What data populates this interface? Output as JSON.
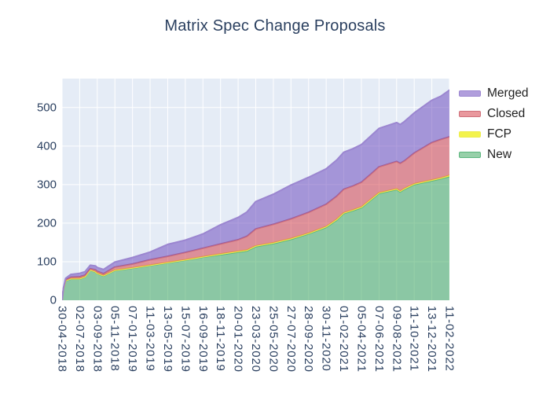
{
  "chart_data": {
    "type": "area",
    "stacked": true,
    "title": "Matrix Spec Change Proposals",
    "plot_bg_color": "#e5ecf6",
    "grid_color": "#ffffff",
    "axis_font_color": "#2a3f5f",
    "y_ticks": [
      0,
      100,
      200,
      300,
      400,
      500
    ],
    "y_max": 575,
    "x_ticks": [
      "30-04-2018",
      "02-07-2018",
      "03-09-2018",
      "05-11-2018",
      "07-01-2019",
      "11-03-2019",
      "13-05-2019",
      "15-07-2019",
      "16-09-2019",
      "18-11-2019",
      "20-01-2020",
      "23-03-2020",
      "25-05-2020",
      "27-07-2020",
      "28-09-2020",
      "30-11-2020",
      "01-02-2021",
      "05-04-2021",
      "07-06-2021",
      "09-08-2021",
      "11-10-2021",
      "13-12-2021",
      "11-02-2022"
    ],
    "x_index_max": 22,
    "sample_i": [
      0,
      0.08,
      0.2,
      0.5,
      1,
      1.3,
      1.6,
      1.9,
      2,
      2.35,
      3,
      4,
      5,
      6,
      7,
      8,
      9,
      10,
      10.5,
      11,
      12,
      13,
      14,
      15,
      15.6,
      16,
      16.5,
      17,
      17.6,
      18,
      19,
      19.2,
      19.45,
      20,
      21,
      21.5,
      22
    ],
    "series": [
      {
        "name": "New",
        "line_color": "#5cb67e",
        "fill_color": "#37a559",
        "fill_opacity": 0.52,
        "legend_fill": "#97d0a9",
        "values": [
          0,
          30,
          50,
          55,
          55,
          60,
          78,
          73,
          69,
          63,
          77,
          83,
          90,
          97,
          104,
          112,
          118,
          125,
          128,
          139,
          147,
          158,
          172,
          189,
          208,
          225,
          232,
          240,
          262,
          277,
          287,
          281,
          288,
          300,
          310,
          315,
          321
        ]
      },
      {
        "name": "FCP",
        "line_color": "#eded4f",
        "fill_color": "#f2f22e",
        "fill_opacity": 0.85,
        "legend_fill": "#f3f34d",
        "values": [
          0,
          0,
          1,
          1,
          1,
          1,
          1,
          1,
          1,
          1,
          1,
          1,
          1,
          1,
          1,
          1,
          2,
          2,
          2,
          2,
          2,
          2,
          2,
          2,
          2,
          2,
          2,
          2,
          2,
          2,
          2,
          2,
          2,
          2,
          2,
          2,
          3
        ]
      },
      {
        "name": "Closed",
        "line_color": "#cf707a",
        "fill_color": "#d6434c",
        "fill_opacity": 0.55,
        "legend_fill": "#e9989d",
        "values": [
          0,
          1,
          2,
          4,
          5,
          4,
          3,
          5,
          5,
          5,
          8,
          10,
          14,
          16,
          19,
          22,
          26,
          30,
          36,
          44,
          48,
          51,
          54,
          58,
          60,
          61,
          62,
          64,
          66,
          67,
          71,
          72,
          72,
          80,
          97,
          100,
          100
        ]
      },
      {
        "name": "Merged",
        "line_color": "#9b86d0",
        "fill_color": "#6f4ebf",
        "fill_opacity": 0.55,
        "legend_fill": "#b09edc",
        "values": [
          0,
          2,
          4,
          7,
          9,
          9,
          9,
          10,
          10,
          11,
          13,
          17,
          20,
          31,
          32,
          37,
          50,
          58,
          63,
          71,
          78,
          88,
          91,
          92,
          94,
          96,
          97,
          98,
          99,
          100,
          101,
          101,
          102,
          104,
          110,
          112,
          121
        ]
      }
    ],
    "legend_order": [
      "Merged",
      "Closed",
      "FCP",
      "New"
    ],
    "legend_position": "right"
  }
}
